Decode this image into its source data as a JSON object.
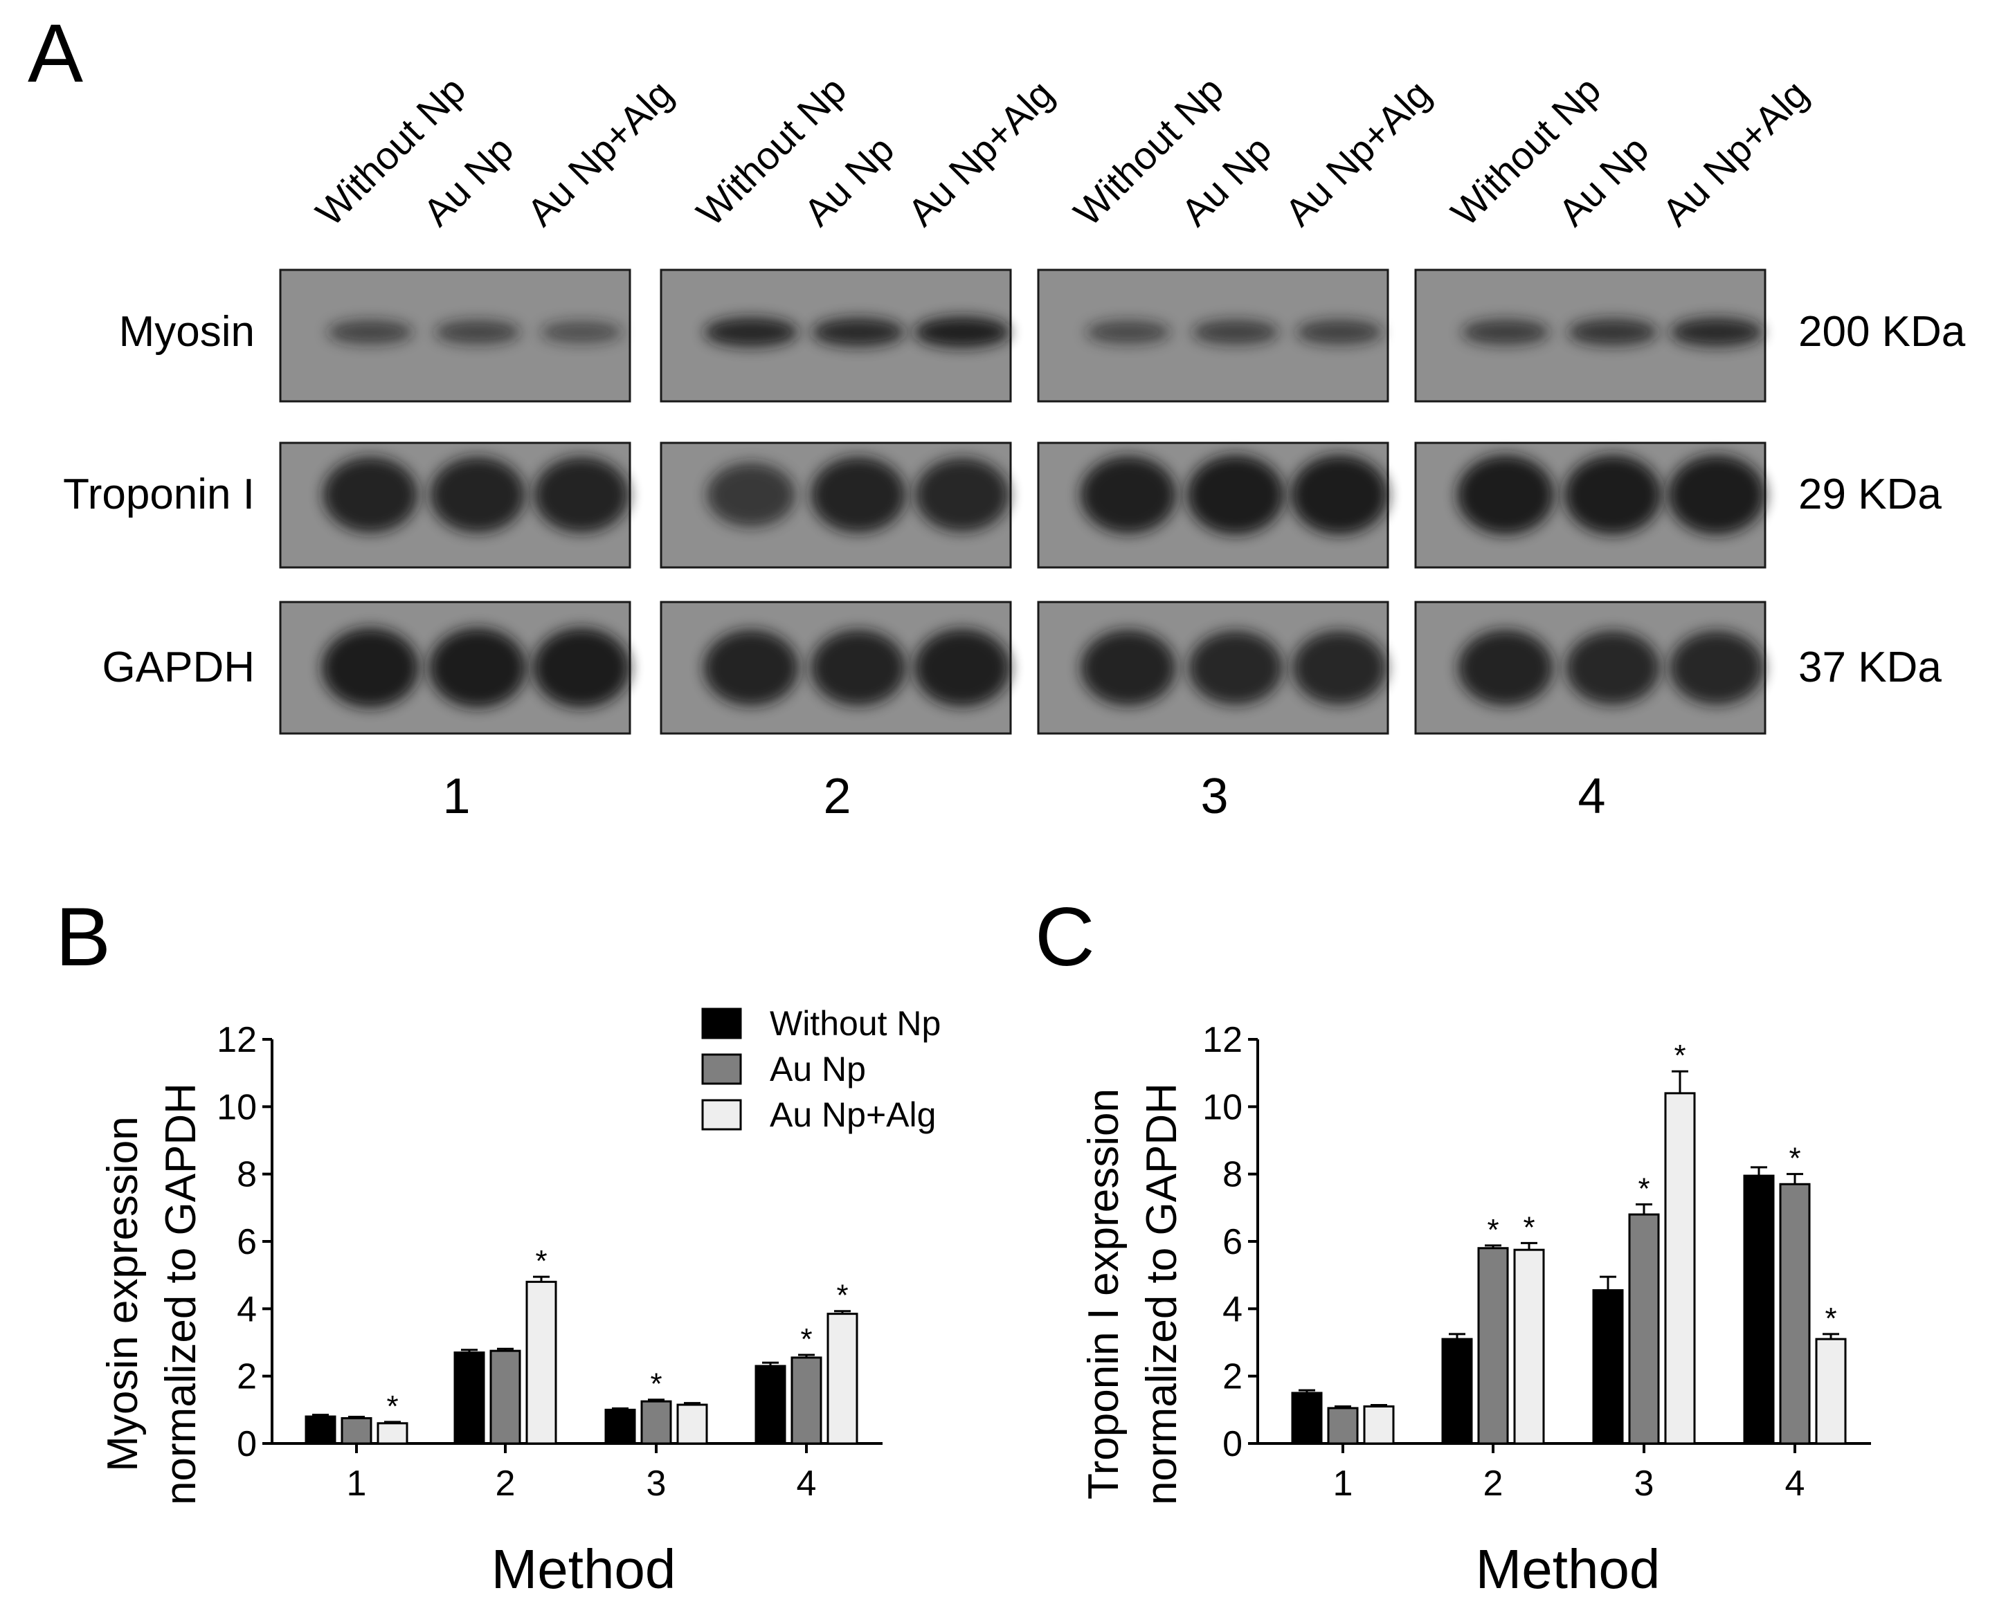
{
  "panel_labels": {
    "a": "A",
    "b": "B",
    "c": "C"
  },
  "blot": {
    "lanes": [
      "Without Np",
      "Au Np",
      "Au Np+Alg"
    ],
    "lanes_group4": [
      "Without  Np",
      "Au Np",
      "Au Np+Alg"
    ],
    "proteins": [
      "Myosin",
      "Troponin I",
      "GAPDH"
    ],
    "sizes": [
      "200 KDa",
      "29 KDa",
      "37 KDa"
    ],
    "methods": [
      "1",
      "2",
      "3",
      "4"
    ],
    "band_intensity": {
      "Myosin": [
        [
          0.45,
          0.45,
          0.3
        ],
        [
          0.85,
          0.8,
          0.95
        ],
        [
          0.4,
          0.5,
          0.5
        ],
        [
          0.55,
          0.65,
          0.8
        ]
      ],
      "Troponin I": [
        [
          0.9,
          0.9,
          0.9
        ],
        [
          0.6,
          0.9,
          0.85
        ],
        [
          0.95,
          1.0,
          1.0
        ],
        [
          1.0,
          1.0,
          1.0
        ]
      ],
      "GAPDH": [
        [
          1.0,
          1.0,
          1.0
        ],
        [
          0.9,
          0.9,
          0.95
        ],
        [
          0.9,
          0.85,
          0.85
        ],
        [
          0.9,
          0.85,
          0.85
        ]
      ]
    },
    "colors": {
      "frame": "#1a1a1a",
      "background": "#8f8f8f",
      "band": "#141414"
    }
  },
  "legend": [
    "Without Np",
    "Au Np",
    "Au Np+Alg"
  ],
  "bar_colors": [
    "#000000",
    "#7f7f7f",
    "#eeeeee"
  ],
  "significance_marker": "*",
  "chart_data": [
    {
      "type": "bar",
      "panel": "B",
      "ylabel_line1": "Myosin expression",
      "ylabel_line2": "normalized to GAPDH",
      "xlabel": "Method",
      "categories": [
        "1",
        "2",
        "3",
        "4"
      ],
      "ylim": [
        0,
        12
      ],
      "yticks": [
        0,
        2,
        4,
        6,
        8,
        10,
        12
      ],
      "series": [
        {
          "name": "Without Np",
          "values": [
            0.8,
            2.7,
            1.0,
            2.3
          ],
          "errors": [
            0.05,
            0.08,
            0.04,
            0.1
          ],
          "significant": [
            false,
            false,
            false,
            false
          ]
        },
        {
          "name": "Au Np",
          "values": [
            0.75,
            2.75,
            1.25,
            2.55
          ],
          "errors": [
            0.04,
            0.06,
            0.05,
            0.08
          ],
          "significant": [
            false,
            false,
            true,
            true
          ]
        },
        {
          "name": "Au Np+Alg",
          "values": [
            0.6,
            4.8,
            1.15,
            3.85
          ],
          "errors": [
            0.04,
            0.15,
            0.05,
            0.08
          ],
          "significant": [
            true,
            true,
            false,
            true
          ]
        }
      ],
      "legend": "top-right"
    },
    {
      "type": "bar",
      "panel": "C",
      "ylabel_line1": "Troponin I expression",
      "ylabel_line2": "normalized to GAPDH",
      "xlabel": "Method",
      "categories": [
        "1",
        "2",
        "3",
        "4"
      ],
      "ylim": [
        0,
        12
      ],
      "yticks": [
        0,
        2,
        4,
        6,
        8,
        10,
        12
      ],
      "series": [
        {
          "name": "Without Np",
          "values": [
            1.5,
            3.1,
            4.55,
            7.95
          ],
          "errors": [
            0.08,
            0.15,
            0.4,
            0.25
          ],
          "significant": [
            false,
            false,
            false,
            false
          ]
        },
        {
          "name": "Au Np",
          "values": [
            1.05,
            5.8,
            6.8,
            7.7
          ],
          "errors": [
            0.05,
            0.08,
            0.3,
            0.3
          ],
          "significant": [
            false,
            true,
            true,
            true
          ]
        },
        {
          "name": "Au Np+Alg",
          "values": [
            1.1,
            5.75,
            10.4,
            3.1
          ],
          "errors": [
            0.04,
            0.2,
            0.65,
            0.15
          ],
          "significant": [
            false,
            true,
            true,
            true
          ]
        }
      ]
    }
  ]
}
